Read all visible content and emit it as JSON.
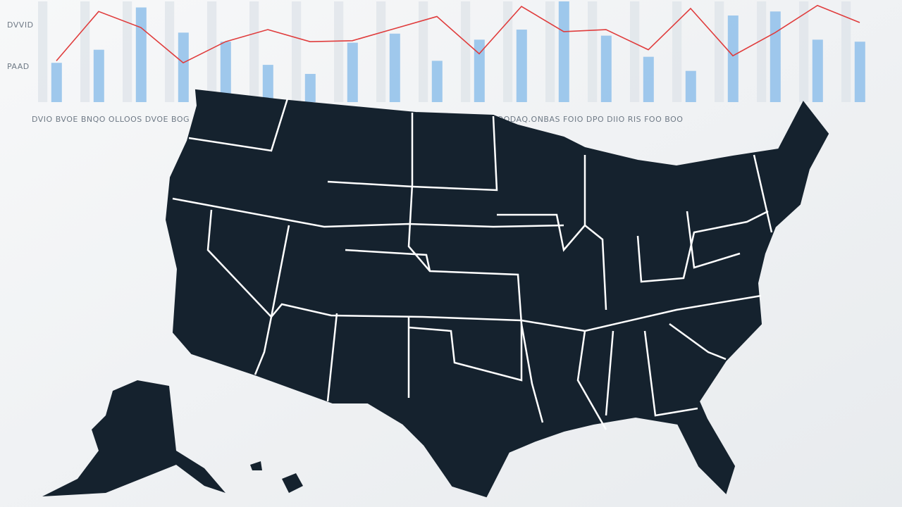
{
  "chart_data": {
    "type": "bar",
    "side_labels": [
      "DVVID",
      "PAAD"
    ],
    "axis_labels": [
      "DVIO BVOE BNQO OLLOOS DVOE BOG",
      "DAAS RNOG ANDS IMADOS LOODAQ.ONBAS FOIO DPO DIIO RIS FOO BOO"
    ],
    "categories": [
      null,
      null,
      null,
      null,
      null,
      null,
      null,
      null,
      null,
      null,
      null,
      null,
      null,
      null,
      null,
      null,
      null,
      null,
      null,
      null
    ],
    "values": [
      39,
      52,
      94,
      69,
      60,
      37,
      28,
      59,
      68,
      41,
      62,
      72,
      100,
      66,
      45,
      31,
      86,
      90,
      62,
      60
    ],
    "color": "#8fc0ea",
    "line_values": [
      41,
      90,
      74,
      39,
      60,
      72,
      60,
      61,
      73,
      85,
      48,
      95,
      70,
      72,
      52,
      93,
      46,
      69,
      96,
      79
    ],
    "line_color": "#e03c3c",
    "ylim": [
      0,
      100
    ]
  }
}
